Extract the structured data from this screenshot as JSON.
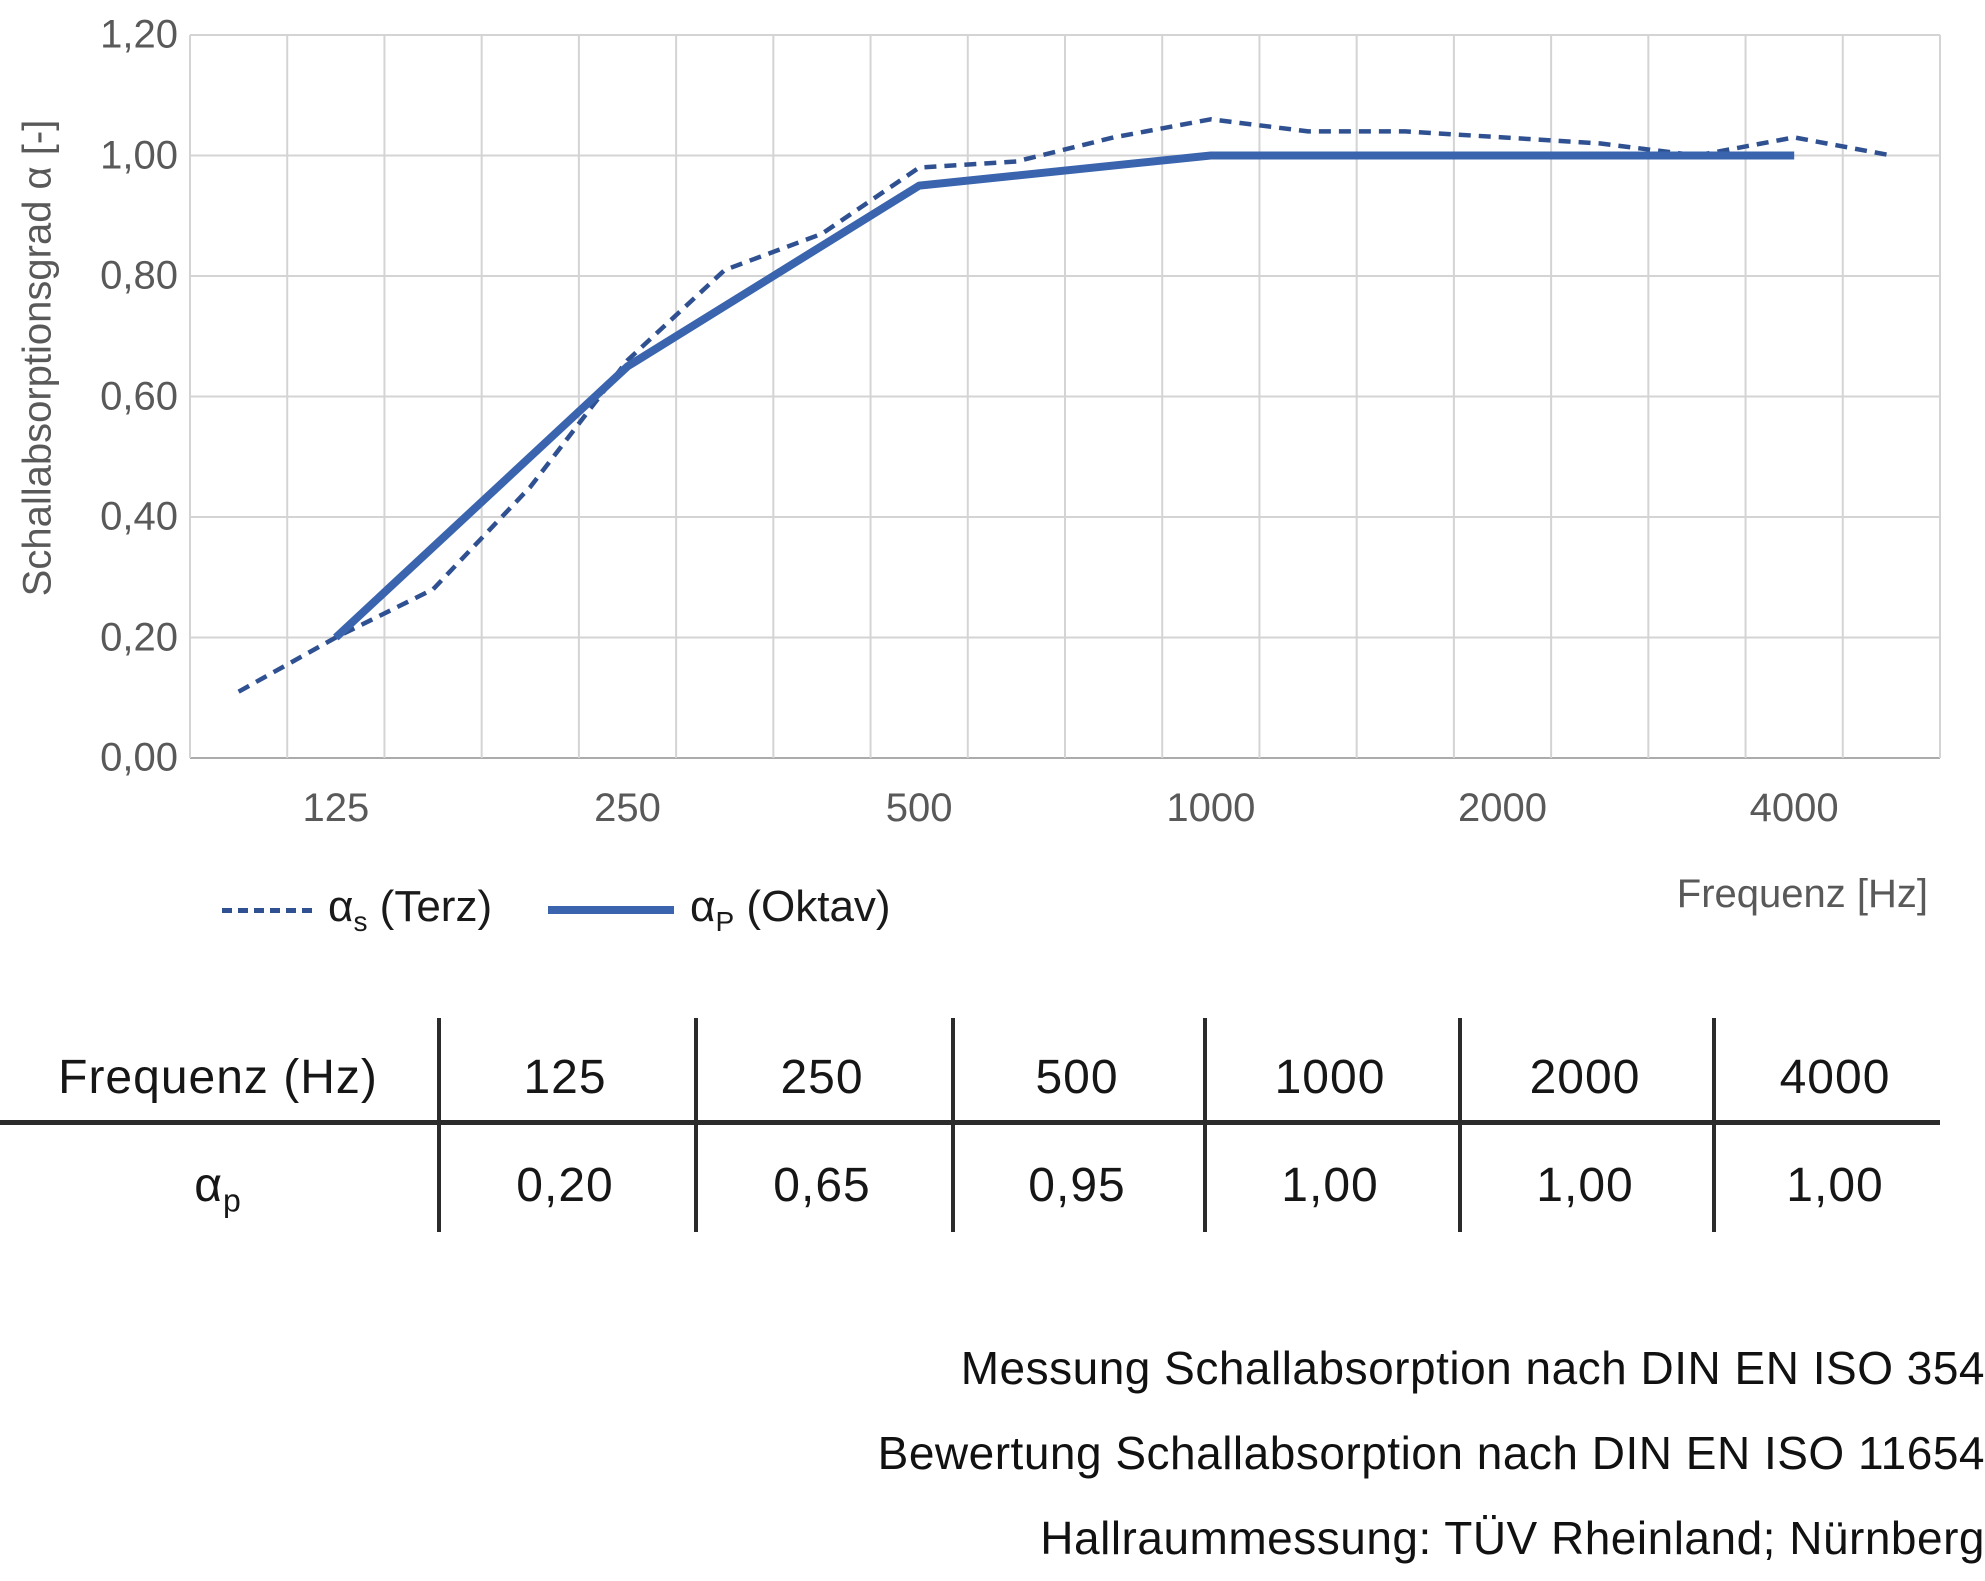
{
  "y_axis": {
    "title": "Schallabsorptionsgrad α [-]",
    "tick_labels": [
      "1,20",
      "1,00",
      "0,80",
      "0,60",
      "0,40",
      "0,20",
      "0,00"
    ]
  },
  "x_axis": {
    "title": "Frequenz [Hz]",
    "tick_labels": [
      "125",
      "250",
      "500",
      "1000",
      "2000",
      "4000"
    ],
    "tick_slots": [
      1,
      4,
      7,
      10,
      13,
      16
    ]
  },
  "legend": {
    "items": [
      {
        "alpha": "α",
        "sub": "s",
        "label": "(Terz)",
        "line_style": "dashed"
      },
      {
        "alpha": "α",
        "sub": "P",
        "label": "(Oktav)",
        "line_style": "solid"
      }
    ]
  },
  "chart_data": {
    "type": "line",
    "x_scale": "logarithmic (third-octave band categories)",
    "xlabel": "Frequenz [Hz]",
    "ylabel": "Schallabsorptionsgrad α [-]",
    "ylim": [
      0.0,
      1.2
    ],
    "y_step": 0.2,
    "grid": true,
    "legend_position": "bottom-left",
    "categories": [
      "100",
      "125",
      "160",
      "200",
      "250",
      "315",
      "400",
      "500",
      "630",
      "800",
      "1000",
      "1250",
      "1600",
      "2000",
      "2500",
      "3150",
      "4000",
      "5000"
    ],
    "series": [
      {
        "name": "αs (Terz)",
        "style": "dashed",
        "color": "#2F5191",
        "values": [
          0.11,
          0.2,
          0.28,
          0.45,
          0.66,
          0.81,
          0.87,
          0.98,
          0.99,
          1.03,
          1.06,
          1.04,
          1.04,
          1.03,
          1.02,
          1.0,
          1.03,
          1.0
        ]
      },
      {
        "name": "αp (Oktav)",
        "style": "solid",
        "color": "#3A64AE",
        "category_slots": [
          1,
          4,
          7,
          10,
          13,
          16
        ],
        "categories": [
          "125",
          "250",
          "500",
          "1000",
          "2000",
          "4000"
        ],
        "values": [
          0.2,
          0.65,
          0.95,
          1.0,
          1.0,
          1.0
        ]
      }
    ]
  },
  "table": {
    "header_row": [
      "Frequenz (Hz)",
      "125",
      "250",
      "500",
      "1000",
      "2000",
      "4000"
    ],
    "row_label": {
      "alpha": "α",
      "sub": "p"
    },
    "values": [
      "0,20",
      "0,65",
      "0,95",
      "1,00",
      "1,00",
      "1,00"
    ]
  },
  "footer": {
    "lines": [
      "Messung Schallabsorption nach DIN EN ISO 354",
      "Bewertung Schallabsorption nach DIN EN ISO 11654",
      "Hallraummessung: TÜV Rheinland; Nürnberg"
    ]
  },
  "colors": {
    "solid_line": "#3A64AE",
    "dashed_line": "#2F5191",
    "gridline": "#D4D4D4",
    "axis_line": "#ABABAB",
    "tick_text": "#595959",
    "table_line": "#2B2B2B",
    "text": "#161616"
  }
}
